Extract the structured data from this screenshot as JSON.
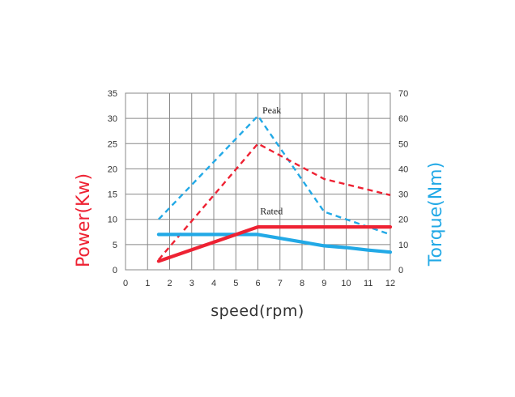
{
  "chart_data": {
    "type": "line",
    "xlabel": "speed(rpm)",
    "ylabel_left": "Power(Kw)",
    "ylabel_right": "Torque(Nm)",
    "xlim": [
      0,
      12
    ],
    "ylim_left": [
      0,
      35
    ],
    "ylim_right": [
      0,
      70
    ],
    "x_ticks": [
      0,
      1,
      2,
      3,
      4,
      5,
      6,
      7,
      8,
      9,
      10,
      11,
      12
    ],
    "y_ticks_left": [
      0,
      5,
      10,
      15,
      20,
      25,
      30,
      35
    ],
    "y_ticks_right": [
      0,
      10,
      20,
      30,
      40,
      50,
      60,
      70
    ],
    "grid": true,
    "colors": {
      "power": "#ee2233",
      "torque": "#22a9e6"
    },
    "annotations": [
      {
        "text": "Peak",
        "x": 6.2,
        "y_left": 31
      },
      {
        "text": "Rated",
        "x": 6.1,
        "y_left": 11
      }
    ],
    "series": [
      {
        "key": "power-peak",
        "axis": "left",
        "color": "#ee2233",
        "style": "dashed",
        "x": [
          1.5,
          6,
          9,
          12
        ],
        "y": [
          2,
          25,
          18,
          14.8
        ]
      },
      {
        "key": "power-rated",
        "axis": "left",
        "color": "#ee2233",
        "style": "solid",
        "x": [
          1.5,
          6,
          9,
          12
        ],
        "y": [
          1.7,
          8.5,
          8.5,
          8.5
        ]
      },
      {
        "key": "torque-peak",
        "axis": "right",
        "color": "#22a9e6",
        "style": "dashed",
        "x": [
          1.5,
          6,
          9,
          12
        ],
        "y": [
          20,
          61,
          23,
          14
        ]
      },
      {
        "key": "torque-rated",
        "axis": "right",
        "color": "#22a9e6",
        "style": "solid",
        "x": [
          1.5,
          6,
          7,
          8,
          9,
          10,
          11,
          12
        ],
        "y": [
          14,
          14,
          12.5,
          11,
          9.5,
          8.8,
          7.8,
          7
        ]
      }
    ]
  }
}
